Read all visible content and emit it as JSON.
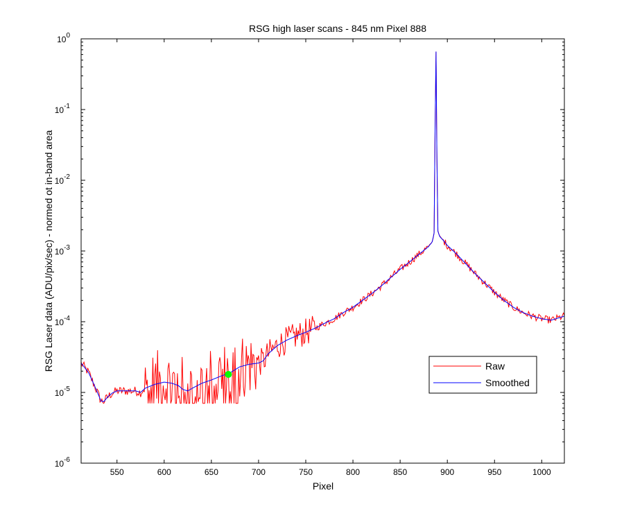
{
  "chart_data": {
    "type": "line",
    "title": "RSG high laser scans  - 845 nm    Pixel 888",
    "xlabel": "Pixel",
    "ylabel": "RSG Laser data (ADU/pix/sec) - normed ot in-band area",
    "xlim": [
      512,
      1024
    ],
    "ylim": [
      1e-06,
      1
    ],
    "yscale": "log",
    "xticks": [
      550,
      600,
      650,
      700,
      750,
      800,
      850,
      900,
      950,
      1000
    ],
    "yticks": [
      {
        "base": "10",
        "exp": "-6",
        "value": 1e-06
      },
      {
        "base": "10",
        "exp": "-5",
        "value": 1e-05
      },
      {
        "base": "10",
        "exp": "-4",
        "value": 0.0001
      },
      {
        "base": "10",
        "exp": "-3",
        "value": 0.001
      },
      {
        "base": "10",
        "exp": "-2",
        "value": 0.01
      },
      {
        "base": "10",
        "exp": "-1",
        "value": 0.1
      },
      {
        "base": "10",
        "exp": "0",
        "value": 1
      }
    ],
    "grid": false,
    "legend_position": "lower-right",
    "series": [
      {
        "name": "Raw",
        "color": "#ff0000",
        "style": "noisy"
      },
      {
        "name": "Smoothed",
        "color": "#0000ff",
        "x": [
          512,
          520,
          528,
          533,
          536,
          540,
          545,
          550,
          560,
          570,
          575,
          580,
          590,
          600,
          608,
          615,
          620,
          625,
          630,
          640,
          650,
          660,
          670,
          680,
          690,
          700,
          705,
          710,
          720,
          730,
          740,
          750,
          760,
          770,
          780,
          790,
          800,
          810,
          820,
          830,
          840,
          850,
          860,
          870,
          880,
          884,
          886,
          887,
          888,
          889,
          890,
          892,
          896,
          900,
          910,
          920,
          930,
          940,
          950,
          960,
          970,
          980,
          990,
          1000,
          1010,
          1024
        ],
        "y": [
          2.6e-05,
          1.9e-05,
          1.1e-05,
          7.6e-06,
          7.4e-06,
          8.6e-06,
          9.8e-06,
          1.05e-05,
          1.05e-05,
          1.05e-05,
          1e-05,
          1.15e-05,
          1.3e-05,
          1.4e-05,
          1.35e-05,
          1.25e-05,
          1.1e-05,
          1.05e-05,
          1.15e-05,
          1.35e-05,
          1.5e-05,
          1.7e-05,
          1.9e-05,
          2.3e-05,
          2.5e-05,
          2.6e-05,
          2.8e-05,
          3.5e-05,
          4.6e-05,
          5.5e-05,
          6.3e-05,
          7.1e-05,
          8.1e-05,
          9.5e-05,
          0.00011,
          0.000135,
          0.00016,
          0.0002,
          0.00025,
          0.00032,
          0.00042,
          0.00055,
          0.0007,
          0.0009,
          0.00115,
          0.00135,
          0.0018,
          0.05,
          0.66,
          0.02,
          0.0019,
          0.0016,
          0.0014,
          0.0012,
          0.0009,
          0.00065,
          0.00047,
          0.00035,
          0.00026,
          0.0002,
          0.00016,
          0.000135,
          0.00012,
          0.00011,
          0.000105,
          0.00012
        ]
      }
    ],
    "marker": {
      "x": 668,
      "y": 1.8e-05,
      "color": "#00ff00"
    }
  }
}
